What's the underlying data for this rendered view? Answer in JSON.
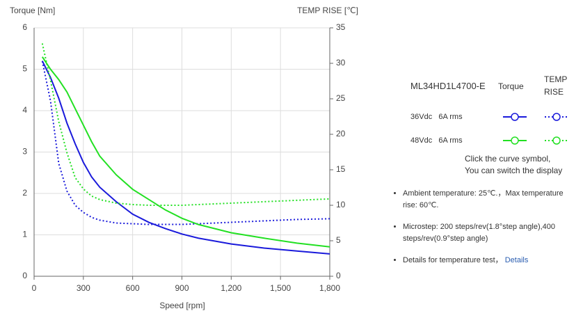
{
  "chart_data": {
    "type": "line",
    "ylabel": "Torque  [Nm]",
    "y2label": "TEMP RISE [℃]",
    "xlabel": "Speed [rpm]",
    "x": [
      50,
      100,
      150,
      200,
      250,
      300,
      350,
      400,
      500,
      600,
      700,
      800,
      900,
      1000,
      1200,
      1400,
      1600,
      1800
    ],
    "series": [
      {
        "color": "#1a1adb",
        "style": "solid",
        "axis": "y",
        "values": [
          5.2,
          4.8,
          4.3,
          3.7,
          3.2,
          2.75,
          2.4,
          2.15,
          1.8,
          1.5,
          1.3,
          1.15,
          1.02,
          0.92,
          0.78,
          0.68,
          0.61,
          0.54
        ]
      },
      {
        "color": "#1a1adb",
        "style": "dotted",
        "axis": "y2",
        "values": [
          30.3,
          24.7,
          15.9,
          12,
          10,
          9,
          8.3,
          7.9,
          7.5,
          7.4,
          7.3,
          7.3,
          7.3,
          7.4,
          7.6,
          7.8,
          8,
          8.1
        ]
      },
      {
        "color": "#22e022",
        "style": "solid",
        "axis": "y",
        "values": [
          5.3,
          5,
          4.75,
          4.45,
          4.05,
          3.65,
          3.25,
          2.9,
          2.45,
          2.1,
          1.85,
          1.6,
          1.4,
          1.25,
          1.05,
          0.92,
          0.8,
          0.71
        ]
      },
      {
        "color": "#22e022",
        "style": "dotted",
        "axis": "y2",
        "values": [
          32.8,
          27.6,
          21.8,
          17.4,
          13.9,
          12.3,
          11.3,
          10.8,
          10.3,
          10.1,
          10,
          10,
          10,
          10.1,
          10.3,
          10.5,
          10.7,
          10.9
        ]
      }
    ],
    "xlim": [
      0,
      1800
    ],
    "xticks": [
      0,
      300,
      600,
      900,
      {
        "value": 1200,
        "label": "1,200"
      },
      {
        "value": 1500,
        "label": "1,500"
      },
      {
        "value": 1800,
        "label": "1,800"
      }
    ],
    "ylim": [
      0,
      6
    ],
    "yticks": [
      0,
      1,
      2,
      3,
      4,
      5,
      6
    ],
    "y2lim": [
      0,
      35
    ],
    "y2ticks": [
      0,
      5,
      10,
      15,
      20,
      25,
      30,
      35
    ],
    "grid": true
  },
  "legend": {
    "title": "ML34HD1L4700-E",
    "columns": [
      "Torque",
      "TEMP",
      "RISE"
    ],
    "rows": [
      "36Vdc   6A rms",
      "48Vdc   6A rms"
    ],
    "hint": [
      "Click the curve symbol,",
      "You can switch the display"
    ]
  },
  "notes": [
    "Ambient temperature: 25℃.，Max temperature rise: 60℃.",
    "Microstep: 200 steps/rev(1.8°step angle),400 steps/rev(0.9°step angle)",
    "Details for temperature test，"
  ],
  "link": "Details"
}
